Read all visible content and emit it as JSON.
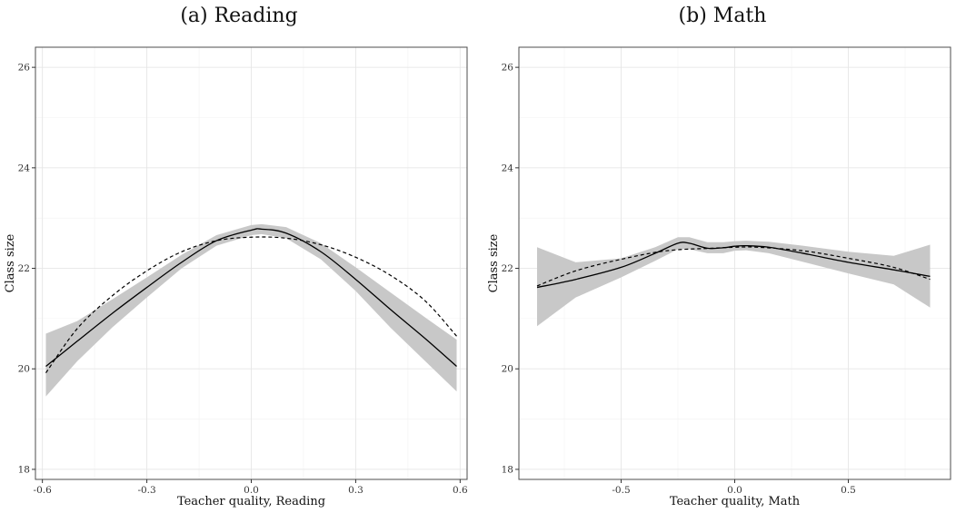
{
  "chart_data": [
    {
      "type": "line",
      "title": "(a) Reading",
      "xlabel": "Teacher quality, Reading",
      "ylabel": "Class size",
      "xlim": [
        -0.62,
        0.62
      ],
      "ylim": [
        17.8,
        26.4
      ],
      "xticks": [
        -0.6,
        -0.3,
        0.0,
        0.3,
        0.6
      ],
      "xtick_labels": [
        "-0.6",
        "-0.3",
        "0.0",
        "0.3",
        "0.6"
      ],
      "yticks": [
        18,
        20,
        22,
        24,
        26
      ],
      "ytick_labels": [
        "18",
        "20",
        "22",
        "24",
        "26"
      ],
      "grid": true,
      "series": [
        {
          "style": "solid",
          "x": [
            -0.59,
            -0.5,
            -0.4,
            -0.3,
            -0.2,
            -0.1,
            0.0,
            0.03,
            0.1,
            0.2,
            0.3,
            0.4,
            0.5,
            0.59
          ],
          "y": [
            20.05,
            20.55,
            21.1,
            21.62,
            22.12,
            22.55,
            22.76,
            22.78,
            22.7,
            22.33,
            21.78,
            21.18,
            20.6,
            20.05
          ]
        },
        {
          "style": "dashed",
          "x": [
            -0.59,
            -0.5,
            -0.4,
            -0.3,
            -0.2,
            -0.1,
            0.0,
            0.1,
            0.2,
            0.3,
            0.4,
            0.5,
            0.59
          ],
          "y": [
            19.92,
            20.8,
            21.45,
            21.95,
            22.33,
            22.55,
            22.62,
            22.6,
            22.47,
            22.22,
            21.86,
            21.35,
            20.65
          ]
        },
        {
          "style": "band",
          "x": [
            -0.59,
            -0.5,
            -0.4,
            -0.3,
            -0.2,
            -0.1,
            0.0,
            0.03,
            0.1,
            0.2,
            0.3,
            0.4,
            0.5,
            0.59
          ],
          "lower": [
            19.45,
            20.15,
            20.82,
            21.42,
            22.0,
            22.45,
            22.66,
            22.68,
            22.6,
            22.18,
            21.55,
            20.82,
            20.15,
            19.55
          ],
          "upper": [
            20.7,
            20.95,
            21.38,
            21.82,
            22.27,
            22.66,
            22.86,
            22.88,
            22.82,
            22.5,
            22.02,
            21.52,
            21.02,
            20.58
          ]
        }
      ]
    },
    {
      "type": "line",
      "title": "(b) Math",
      "xlabel": "Teacher quality, Math",
      "ylabel": "Class size",
      "xlim": [
        -0.95,
        0.95
      ],
      "ylim": [
        17.8,
        26.4
      ],
      "xticks": [
        -0.5,
        0.0,
        0.5
      ],
      "xtick_labels": [
        "-0.5",
        "0.0",
        "0.5"
      ],
      "yticks": [
        18,
        20,
        22,
        24,
        26
      ],
      "ytick_labels": [
        "18",
        "20",
        "22",
        "24",
        "26"
      ],
      "grid": true,
      "series": [
        {
          "style": "solid",
          "x": [
            -0.87,
            -0.7,
            -0.5,
            -0.35,
            -0.25,
            -0.2,
            -0.12,
            -0.05,
            0.0,
            0.05,
            0.15,
            0.3,
            0.5,
            0.7,
            0.86
          ],
          "y": [
            21.62,
            21.78,
            22.02,
            22.3,
            22.5,
            22.5,
            22.4,
            22.41,
            22.44,
            22.45,
            22.42,
            22.3,
            22.12,
            21.97,
            21.84
          ]
        },
        {
          "style": "dashed",
          "x": [
            -0.87,
            -0.7,
            -0.5,
            -0.3,
            -0.1,
            0.0,
            0.1,
            0.3,
            0.5,
            0.7,
            0.86
          ],
          "y": [
            21.65,
            21.95,
            22.18,
            22.35,
            22.4,
            22.42,
            22.42,
            22.35,
            22.2,
            22.02,
            21.78
          ]
        },
        {
          "style": "band",
          "x": [
            -0.87,
            -0.7,
            -0.5,
            -0.35,
            -0.25,
            -0.2,
            -0.12,
            -0.05,
            0.0,
            0.05,
            0.15,
            0.3,
            0.5,
            0.7,
            0.86
          ],
          "lower": [
            20.85,
            21.42,
            21.82,
            22.15,
            22.38,
            22.38,
            22.3,
            22.3,
            22.35,
            22.36,
            22.3,
            22.13,
            21.9,
            21.68,
            21.22
          ],
          "upper": [
            22.42,
            22.12,
            22.2,
            22.42,
            22.62,
            22.62,
            22.52,
            22.52,
            22.54,
            22.55,
            22.53,
            22.45,
            22.33,
            22.25,
            22.47
          ]
        }
      ]
    }
  ]
}
